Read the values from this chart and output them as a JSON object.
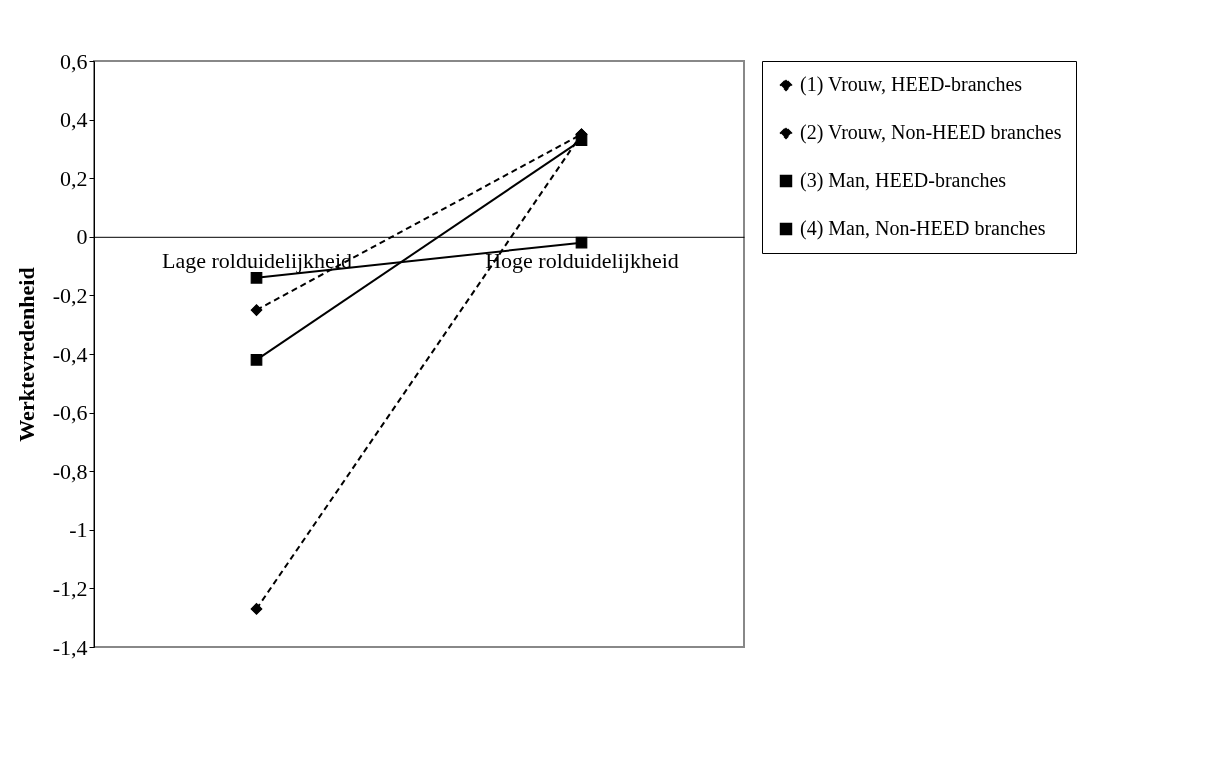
{
  "chart_data": {
    "type": "line",
    "ylabel": "Werktevredenheid",
    "categories": [
      "Lage rolduidelijkheid",
      "Hoge rolduidelijkheid"
    ],
    "series": [
      {
        "name": "(1) Vrouw, HEED-branches",
        "color": "#000000",
        "marker": "diamond",
        "line_style": "dashed",
        "values": [
          -0.25,
          0.35
        ]
      },
      {
        "name": "(2) Vrouw, Non-HEED branches",
        "color": "#000000",
        "marker": "diamond",
        "line_style": "dashed",
        "values": [
          -1.27,
          0.35
        ]
      },
      {
        "name": "(3) Man, HEED-branches",
        "color": "#000000",
        "marker": "square",
        "line_style": "solid",
        "values": [
          -0.42,
          0.33
        ]
      },
      {
        "name": "(4) Man, Non-HEED branches",
        "color": "#000000",
        "marker": "square",
        "line_style": "solid",
        "values": [
          -0.14,
          -0.02
        ]
      }
    ],
    "ylim": [
      -1.4,
      0.6
    ],
    "yticks": [
      {
        "value": 0.6,
        "label": "0,6"
      },
      {
        "value": 0.4,
        "label": "0,4"
      },
      {
        "value": 0.2,
        "label": "0,2"
      },
      0,
      {
        "value": -0.2,
        "label": "-0,2"
      },
      {
        "value": -0.4,
        "label": "-0,4"
      },
      {
        "value": -0.6,
        "label": "-0,6"
      },
      {
        "value": -0.8,
        "label": "-0,8"
      },
      -1,
      {
        "value": -1.2,
        "label": "-1,2"
      },
      {
        "value": -1.4,
        "label": "-1,4"
      }
    ],
    "grid": false,
    "legend": "right"
  }
}
